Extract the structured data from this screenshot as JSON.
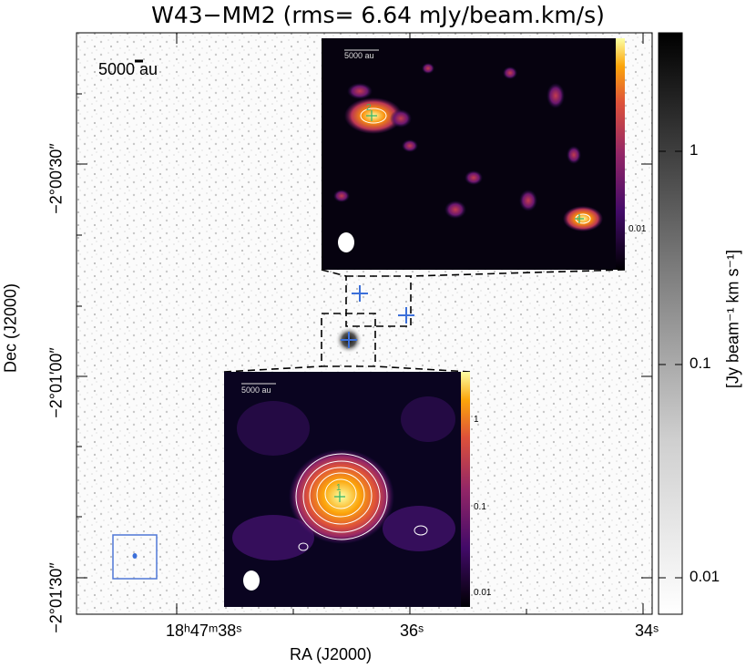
{
  "chart_data": {
    "type": "heatmap",
    "title": "W43−MM2 (rms= 6.64 mJy/beam.km/s)",
    "xlabel": "RA (J2000)",
    "ylabel": "Dec (J2000)",
    "colorbar_label": "[Jy beam⁻¹ km s⁻¹]",
    "x_ticks": [
      "18ʰ47ᵐ38ˢ",
      "36ˢ",
      "34ˢ"
    ],
    "y_ticks": [
      "−2°00′30″",
      "−2°01′00″",
      "−2°01′30″"
    ],
    "colorbar_ticks": [
      "1",
      "0.1",
      "0.01"
    ],
    "colorbar_scale": "log",
    "scale_bar_main": "5000 au",
    "insets": [
      {
        "name": "upper inset",
        "scale_bar": "5000 au",
        "colorbar_ticks": [
          "0.01"
        ],
        "source_label": "2",
        "colormap": "inferno"
      },
      {
        "name": "lower inset",
        "scale_bar": "5000 au",
        "colorbar_ticks": [
          "1",
          "0.1",
          "0.01"
        ],
        "source_label": "1",
        "colormap": "inferno"
      }
    ],
    "markers": [
      "source 1 cross",
      "source 2 cross",
      "source 3 cross"
    ],
    "colors": {
      "cross": "#3b6fd9",
      "beam_box": "#4f78d6",
      "contour": "#ffffff"
    }
  }
}
